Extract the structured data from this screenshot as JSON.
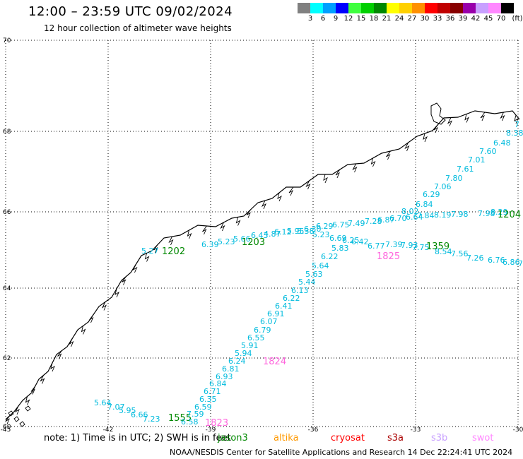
{
  "header": {
    "title": "12:00 – 23:59 UTC 09/02/2024",
    "subtitle": "12 hour collection of altimeter wave heights"
  },
  "legend": {
    "colors": [
      "#808080",
      "#00ffff",
      "#00a0ff",
      "#0000ff",
      "#40ff40",
      "#00d000",
      "#008800",
      "#ffff00",
      "#ffd000",
      "#ff9000",
      "#ff0000",
      "#c00000",
      "#880000",
      "#9900aa",
      "#c8a0ff",
      "#ff88ff",
      "#000000"
    ],
    "labels": [
      "3",
      "6",
      "9",
      "12",
      "15",
      "18",
      "21",
      "24",
      "27",
      "30",
      "33",
      "36",
      "39",
      "42",
      "45",
      "70"
    ],
    "unit": "(ft)"
  },
  "axes": {
    "lon_ticks": [
      "-45",
      "-42",
      "-39",
      "-36",
      "-33",
      "-30"
    ],
    "lat_ticks": [
      "70",
      "68",
      "66",
      "64",
      "62",
      "60"
    ]
  },
  "tracks": [
    {
      "label": "1555",
      "color": "#008800",
      "points": [
        [
          "5.64",
          "#00bbdd"
        ],
        [
          "7.07",
          "#00bbdd"
        ],
        [
          "5.95",
          "#00bbdd"
        ],
        [
          "6.66",
          "#00bbdd"
        ],
        [
          "7.23",
          "#00bbdd"
        ]
      ]
    },
    {
      "label": "1823",
      "color": "#ff66dd",
      "points": [
        [
          "6.58",
          "#00bbdd"
        ],
        [
          "7.59",
          "#00bbdd"
        ],
        [
          "6.59",
          "#00bbdd"
        ],
        [
          "6.35",
          "#00bbdd"
        ],
        [
          "6.71",
          "#00bbdd"
        ],
        [
          "6.84",
          "#00bbdd"
        ],
        [
          "6.93",
          "#00bbdd"
        ],
        [
          "6.81",
          "#00bbdd"
        ],
        [
          "6.24",
          "#00bbdd"
        ],
        [
          "5.94",
          "#00bbdd"
        ],
        [
          "5.91",
          "#00bbdd"
        ],
        [
          "6.55",
          "#00bbdd"
        ],
        [
          "6.79",
          "#00bbdd"
        ],
        [
          "6.07",
          "#00bbdd"
        ],
        [
          "6.91",
          "#00bbdd"
        ],
        [
          "6.41",
          "#00bbdd"
        ],
        [
          "6.22",
          "#00bbdd"
        ],
        [
          "6.13",
          "#00bbdd"
        ],
        [
          "5.44",
          "#00bbdd"
        ],
        [
          "5.63",
          "#00bbdd"
        ],
        [
          "5.64",
          "#00bbdd"
        ],
        [
          "6.22",
          "#00bbdd"
        ],
        [
          "5.83",
          "#00bbdd"
        ]
      ]
    },
    {
      "label": "1824",
      "color": "#ff66dd",
      "points": []
    },
    {
      "label": "1825",
      "color": "#ff66dd",
      "points": []
    },
    {
      "label": "1202",
      "color": "#008800",
      "points": [
        [
          "5.27",
          "#00bbdd"
        ]
      ]
    },
    {
      "label": "1203",
      "color": "#008800",
      "points": [
        [
          "6.39",
          "#00bbdd"
        ],
        [
          "5.23",
          "#00bbdd"
        ],
        [
          "5.66",
          "#00bbdd"
        ],
        [
          "6.43",
          "#00bbdd"
        ],
        [
          "4.87",
          "#00bbdd"
        ],
        [
          "6.12",
          "#00bbdd"
        ],
        [
          "5.95",
          "#00bbdd"
        ],
        [
          "5.38",
          "#00bbdd"
        ],
        [
          "5.23",
          "#00bbdd"
        ],
        [
          "6.69",
          "#00bbdd"
        ],
        [
          "6.25",
          "#00bbdd"
        ],
        [
          "6.42",
          "#00bbdd"
        ],
        [
          "6.77",
          "#00bbdd"
        ],
        [
          "7.39",
          "#00bbdd"
        ],
        [
          "7.93",
          "#00bbdd"
        ],
        [
          "7.75",
          "#00bbdd"
        ],
        [
          "8.54",
          "#00bbdd"
        ],
        [
          "7.56",
          "#00bbdd"
        ],
        [
          "7.26",
          "#00bbdd"
        ],
        [
          "6.76",
          "#00bbdd"
        ],
        [
          "6.86",
          "#00bbdd"
        ],
        [
          "7",
          "#00bbdd"
        ]
      ]
    },
    {
      "label": "1204",
      "color": "#008800",
      "points": [
        [
          "6.30",
          "#00bbdd"
        ],
        [
          "6.29",
          "#00bbdd"
        ],
        [
          "6.75",
          "#00bbdd"
        ],
        [
          "7.49",
          "#00bbdd"
        ],
        [
          "7.28",
          "#00bbdd"
        ],
        [
          "6.87",
          "#00bbdd"
        ],
        [
          "6.70",
          "#00bbdd"
        ],
        [
          "6.64",
          "#00bbdd"
        ],
        [
          "8.02",
          "#00bbdd"
        ],
        [
          "7.84",
          "#00bbdd"
        ],
        [
          "8.19",
          "#00bbdd"
        ],
        [
          "7.98",
          "#00bbdd"
        ],
        [
          "7.98",
          "#00bbdd"
        ],
        [
          "8.29",
          "#00bbdd"
        ],
        [
          "6.84",
          "#00bbdd"
        ],
        [
          "6.29",
          "#00bbdd"
        ],
        [
          "7.06",
          "#00bbdd"
        ],
        [
          "7.80",
          "#00bbdd"
        ],
        [
          "7.61",
          "#00bbdd"
        ],
        [
          "7.01",
          "#00bbdd"
        ],
        [
          "7.60",
          "#00bbdd"
        ],
        [
          "6.48",
          "#00bbdd"
        ],
        [
          "8.38",
          "#00bbdd"
        ],
        [
          "7",
          "#00bbdd"
        ]
      ]
    },
    {
      "label": "1359",
      "color": "#008800",
      "points": []
    }
  ],
  "footer": {
    "note": "note:  1) Time is in UTC; 2) SWH is in feet",
    "satellites": [
      {
        "name": "jason3",
        "color": "#008800"
      },
      {
        "name": "altika",
        "color": "#ff9900"
      },
      {
        "name": "cryosat",
        "color": "#ff0000"
      },
      {
        "name": "s3a",
        "color": "#aa0000"
      },
      {
        "name": "s3b",
        "color": "#c8a0ff"
      },
      {
        "name": "swot",
        "color": "#ff88ff"
      }
    ],
    "credit": "NOAA/NESDIS Center for Satellite Applications and Research    14 Dec 22:24:41 UTC 2024"
  }
}
